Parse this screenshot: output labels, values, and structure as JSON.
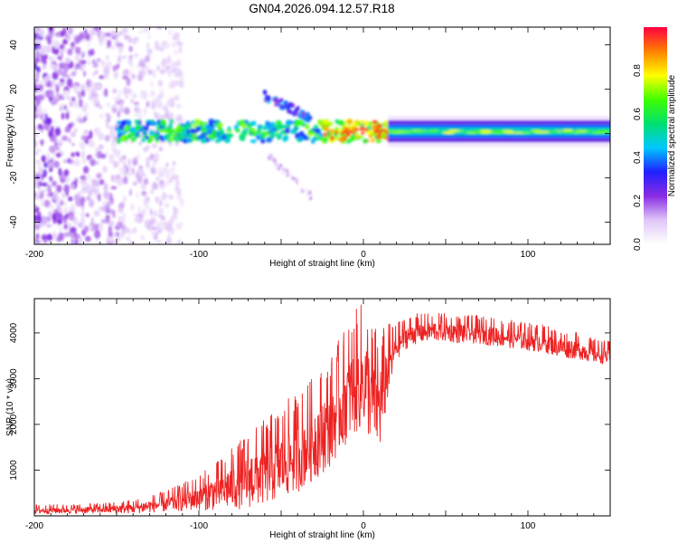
{
  "title": "GN04.2026.094.12.57.R18",
  "chart_data": [
    {
      "type": "heatmap",
      "title": "GN04.2026.094.12.57.R18",
      "xlabel": "Height of straight line (km)",
      "ylabel": "Frequency (Hz)",
      "xlim": [
        -200,
        150
      ],
      "ylim": [
        -50,
        48
      ],
      "xticks": [
        -200,
        -100,
        0,
        100
      ],
      "xtick_labels": [
        "-200",
        "-100",
        "0",
        "100"
      ],
      "yticks": [
        -40,
        -20,
        0,
        20,
        40
      ],
      "ytick_labels": [
        "-40",
        "-20",
        "0",
        "20",
        "40"
      ],
      "colorbar": {
        "label": "Normalized spectral amplitude",
        "range": [
          0,
          1
        ],
        "ticks": [
          0.0,
          0.2,
          0.4,
          0.6,
          0.8
        ],
        "tick_labels": [
          "0.0",
          "0.2",
          "0.4",
          "0.6",
          "0.8"
        ],
        "colormap": [
          "#ffffff",
          "#e0c8f8",
          "#8a2be2",
          "#2020ff",
          "#00c8ff",
          "#00e070",
          "#40ff00",
          "#ffff00",
          "#ff8000",
          "#ff0040"
        ]
      },
      "features": [
        {
          "name": "broadband noise",
          "x_range": [
            -200,
            -110
          ],
          "freq_range": [
            -50,
            48
          ],
          "amplitude": 0.15
        },
        {
          "name": "main band",
          "x_range": [
            -150,
            150
          ],
          "freq_center": 1,
          "amplitude_range": [
            0.3,
            0.95
          ]
        },
        {
          "name": "upper branch",
          "x_range": [
            -60,
            -30
          ],
          "freq_range": [
            5,
            17
          ],
          "amplitude": 0.35
        },
        {
          "name": "lower branch",
          "x_range": [
            -60,
            -30
          ],
          "freq_range": [
            -28,
            -8
          ],
          "amplitude": 0.15
        }
      ]
    },
    {
      "type": "line",
      "xlabel": "Height of straight line (km)",
      "ylabel": "SNR (10 * v/v)",
      "xlim": [
        -200,
        150
      ],
      "ylim": [
        0,
        4750
      ],
      "xticks": [
        -200,
        -100,
        0,
        100
      ],
      "xtick_labels": [
        "-200",
        "-100",
        "0",
        "100"
      ],
      "yticks": [
        1000,
        2000,
        3000,
        4000
      ],
      "ytick_labels": [
        "1000",
        "2000",
        "3000",
        "4000"
      ],
      "color": "#ee2222",
      "series": [
        {
          "name": "SNR",
          "x": [
            -200,
            -180,
            -160,
            -140,
            -120,
            -110,
            -100,
            -90,
            -80,
            -70,
            -60,
            -50,
            -40,
            -30,
            -20,
            -15,
            -10,
            -5,
            0,
            5,
            10,
            15,
            20,
            25,
            30,
            40,
            50,
            60,
            70,
            80,
            90,
            100,
            110,
            120,
            130,
            140,
            150
          ],
          "y": [
            120,
            130,
            140,
            170,
            260,
            340,
            420,
            520,
            650,
            800,
            950,
            1150,
            1350,
            1650,
            2000,
            2300,
            2600,
            2800,
            3000,
            2600,
            2400,
            3200,
            3700,
            3900,
            4000,
            4050,
            4050,
            4000,
            4000,
            3950,
            3900,
            3850,
            3800,
            3700,
            3650,
            3550,
            3500
          ],
          "spread": [
            100,
            100,
            110,
            150,
            220,
            300,
            380,
            500,
            650,
            800,
            900,
            1000,
            1050,
            1100,
            1150,
            1200,
            1250,
            1300,
            1350,
            1300,
            1300,
            800,
            400,
            350,
            330,
            300,
            300,
            300,
            300,
            300,
            300,
            300,
            300,
            300,
            280,
            260,
            250
          ]
        }
      ]
    }
  ]
}
